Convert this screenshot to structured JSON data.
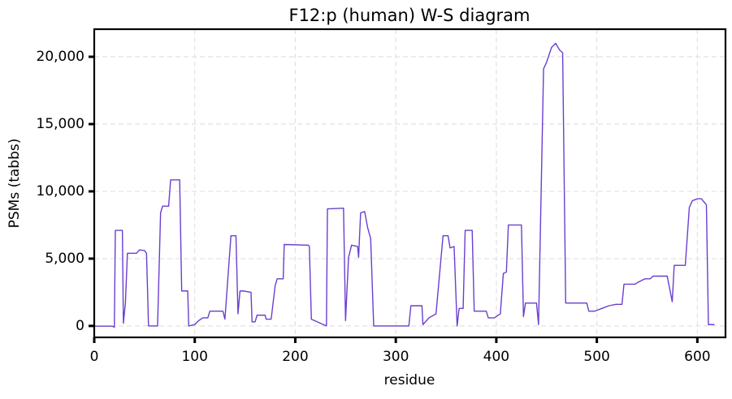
{
  "chart_data": {
    "type": "line",
    "title": "F12:p (human) W-S diagram",
    "xlabel": "residue",
    "ylabel": "PSMs (tabbs)",
    "color": "#6a3fd0",
    "grid": true,
    "xlim": [
      0,
      628
    ],
    "ylim": [
      -850,
      22050
    ],
    "xticks": [
      0,
      100,
      200,
      300,
      400,
      500,
      600
    ],
    "yticks": [
      0,
      {
        "value": 5000,
        "label": "5,000"
      },
      {
        "value": 10000,
        "label": "10,000"
      },
      {
        "value": 15000,
        "label": "15,000"
      },
      {
        "value": 20000,
        "label": "20,000"
      }
    ],
    "x": [
      0,
      18,
      20,
      21,
      28,
      29,
      31,
      33,
      42,
      45,
      50,
      52,
      54,
      63,
      66,
      68,
      74,
      76,
      85,
      87,
      93,
      94,
      100,
      104,
      108,
      113,
      115,
      128,
      130,
      136,
      141,
      143,
      145,
      148,
      156,
      157,
      160,
      162,
      170,
      171,
      176,
      180,
      182,
      188,
      189,
      213,
      214,
      216,
      231,
      232,
      248,
      250,
      253,
      256,
      262,
      263,
      265,
      269,
      272,
      275,
      278,
      313,
      315,
      326,
      327,
      333,
      340,
      347,
      352,
      354,
      358,
      361,
      363,
      367,
      369,
      376,
      378,
      390,
      392,
      398,
      404,
      407,
      410,
      412,
      425,
      427,
      429,
      440,
      442,
      447,
      450,
      455,
      459,
      463,
      466,
      469,
      490,
      492,
      498,
      505,
      512,
      519,
      525,
      527,
      538,
      540,
      545,
      548,
      553,
      556,
      570,
      575,
      577,
      588,
      592,
      595,
      600,
      604,
      609,
      611,
      617
    ],
    "values": [
      -20,
      -20,
      -100,
      7100,
      7100,
      200,
      1700,
      5400,
      5400,
      5650,
      5600,
      5400,
      0,
      0,
      8400,
      8900,
      8900,
      10850,
      10850,
      2600,
      2600,
      0,
      100,
      400,
      600,
      600,
      1100,
      1100,
      500,
      6700,
      6700,
      900,
      2600,
      2600,
      2500,
      300,
      300,
      800,
      800,
      500,
      500,
      3000,
      3500,
      3500,
      6050,
      6000,
      5900,
      500,
      0,
      8700,
      8750,
      400,
      5100,
      6000,
      5900,
      5100,
      8400,
      8500,
      7300,
      6500,
      0,
      0,
      1500,
      1500,
      100,
      600,
      900,
      6700,
      6700,
      5800,
      5900,
      0,
      1300,
      1300,
      7100,
      7100,
      1100,
      1100,
      600,
      600,
      900,
      3900,
      4000,
      7500,
      7500,
      700,
      1700,
      1700,
      100,
      19100,
      19600,
      20700,
      21000,
      20500,
      20300,
      1700,
      1700,
      1100,
      1100,
      1300,
      1500,
      1600,
      1600,
      3100,
      3100,
      3200,
      3400,
      3500,
      3500,
      3700,
      3700,
      1800,
      4500,
      4500,
      8800,
      9300,
      9450,
      9450,
      9000,
      100,
      100
    ]
  }
}
